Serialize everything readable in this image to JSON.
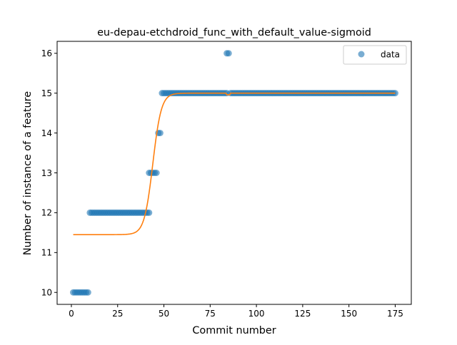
{
  "chart_data": {
    "type": "scatter",
    "title": "eu-depau-etchdroid_func_with_default_value-sigmoid",
    "xlabel": "Commit number",
    "ylabel": "Number of instance of a feature",
    "xlim": [
      -7.7,
      183.7
    ],
    "ylim": [
      9.7,
      16.3
    ],
    "xticks": [
      0,
      25,
      50,
      75,
      100,
      125,
      150,
      175
    ],
    "yticks": [
      10,
      11,
      12,
      13,
      14,
      15,
      16
    ],
    "grid": false,
    "legend": {
      "placement": "top-right",
      "entries": [
        {
          "label": "data",
          "marker": "circle",
          "color": "#1f77b4"
        }
      ]
    },
    "series": [
      {
        "name": "data",
        "kind": "scatter",
        "color": "#1f77b4",
        "runs": [
          {
            "x_start": 1,
            "x_end": 9,
            "y": 10
          },
          {
            "x_start": 10,
            "x_end": 42,
            "y": 12
          },
          {
            "x_start": 42,
            "x_end": 46,
            "y": 13
          },
          {
            "x_start": 47,
            "x_end": 48,
            "y": 14
          },
          {
            "x_start": 49,
            "x_end": 84,
            "y": 15
          },
          {
            "x_start": 84,
            "x_end": 85,
            "y": 16
          },
          {
            "x_start": 86,
            "x_end": 175,
            "y": 15
          }
        ]
      },
      {
        "kind": "line",
        "color": "#ff7f0e",
        "model": "sigmoid",
        "params": {
          "lower": 11.45,
          "upper": 15.0,
          "midpoint": 44.0,
          "scale": 2.3
        },
        "x_range": [
          1,
          175
        ],
        "dip": {
          "x": 84.6,
          "y": 14.96
        }
      }
    ]
  }
}
